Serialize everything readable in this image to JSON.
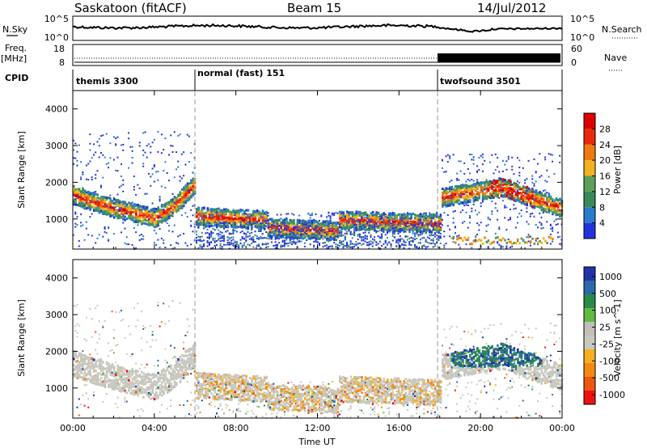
{
  "header": {
    "station": "Saskatoon (fitACF)",
    "beam": "Beam 15",
    "date": "14/Jul/2012"
  },
  "top_panels": {
    "nsky_label": "N.Sky",
    "nsearch_label": "N.Search",
    "nsky_ticks": [
      "10^5",
      "10^0"
    ],
    "nsearch_ticks": [
      "10^5",
      "10^0"
    ],
    "freq_label": [
      "Freq.",
      "[MHz]"
    ],
    "freq_ticks": [
      "18",
      "8"
    ],
    "nave_label": "Nave",
    "nave_ticks": [
      "60",
      "0"
    ],
    "cpid_label": "CPID"
  },
  "modes": [
    {
      "name": "themis 3300",
      "start": 0
    },
    {
      "name": "normal (fast) 151",
      "start": 6
    },
    {
      "name": "twofsound 3501",
      "start": 18
    }
  ],
  "colors": {
    "power": [
      "#2233dd",
      "#2a7ad0",
      "#3a8a5a",
      "#5aa05a",
      "#f2b21c",
      "#f07a10",
      "#e82a0a",
      "#dd0000"
    ],
    "velocity": [
      "#ee1111",
      "#ee5511",
      "#f28a10",
      "#f5b020",
      "#c8c8c0",
      "#c0c0b8",
      "#60bb40",
      "#2a8a4a",
      "#2a6aa8",
      "#2233aa"
    ],
    "gray_bg": "#c8c8c0"
  },
  "chart_data": [
    {
      "type": "heatmap",
      "title": "",
      "xlabel": "",
      "ylabel": "Slant Range [km]",
      "xlim": [
        0,
        24
      ],
      "ylim": [
        180,
        4500
      ],
      "x_ticks": [
        "00:00",
        "04:00",
        "08:00",
        "12:00",
        "16:00",
        "20:00",
        "00:00"
      ],
      "y_ticks": [
        "1000",
        "2000",
        "3000",
        "4000"
      ],
      "colorbar_label": "Power [dB]",
      "colorbar_ticks": [
        "4",
        "8",
        "12",
        "16",
        "20",
        "24",
        "28"
      ],
      "colorbar_range": [
        0,
        30
      ],
      "grid": false,
      "bands": [
        {
          "t0": 0.0,
          "t1": 2.0,
          "r0": 1680,
          "r1": 1320
        },
        {
          "t0": 2.0,
          "t1": 4.0,
          "r0": 1320,
          "r1": 1050
        },
        {
          "t0": 4.0,
          "t1": 5.0,
          "r0": 1050,
          "r1": 1400
        },
        {
          "t0": 5.0,
          "t1": 6.0,
          "r0": 1400,
          "r1": 2000
        },
        {
          "t0": 6.0,
          "t1": 9.5,
          "r0": 1100,
          "r1": 1000
        },
        {
          "t0": 9.5,
          "t1": 13.0,
          "r0": 800,
          "r1": 700
        },
        {
          "t0": 13.0,
          "t1": 18.0,
          "r0": 1000,
          "r1": 900
        },
        {
          "t0": 18.0,
          "t1": 21.0,
          "r0": 1600,
          "r1": 1900
        },
        {
          "t0": 21.0,
          "t1": 24.0,
          "r0": 1900,
          "r1": 1300
        }
      ]
    },
    {
      "type": "heatmap",
      "title": "",
      "xlabel": "Time UT",
      "ylabel": "Slant Range [km]",
      "xlim": [
        0,
        24
      ],
      "ylim": [
        180,
        4500
      ],
      "x_ticks": [
        "00:00",
        "04:00",
        "08:00",
        "12:00",
        "16:00",
        "20:00",
        "00:00"
      ],
      "y_ticks": [
        "1000",
        "2000",
        "3000",
        "4000"
      ],
      "colorbar_label": "Velocity [m s^-1]",
      "colorbar_ticks": [
        "1000",
        "500",
        "100",
        "25",
        "-25",
        "-100",
        "-500",
        "-1000"
      ],
      "grid": false
    }
  ]
}
